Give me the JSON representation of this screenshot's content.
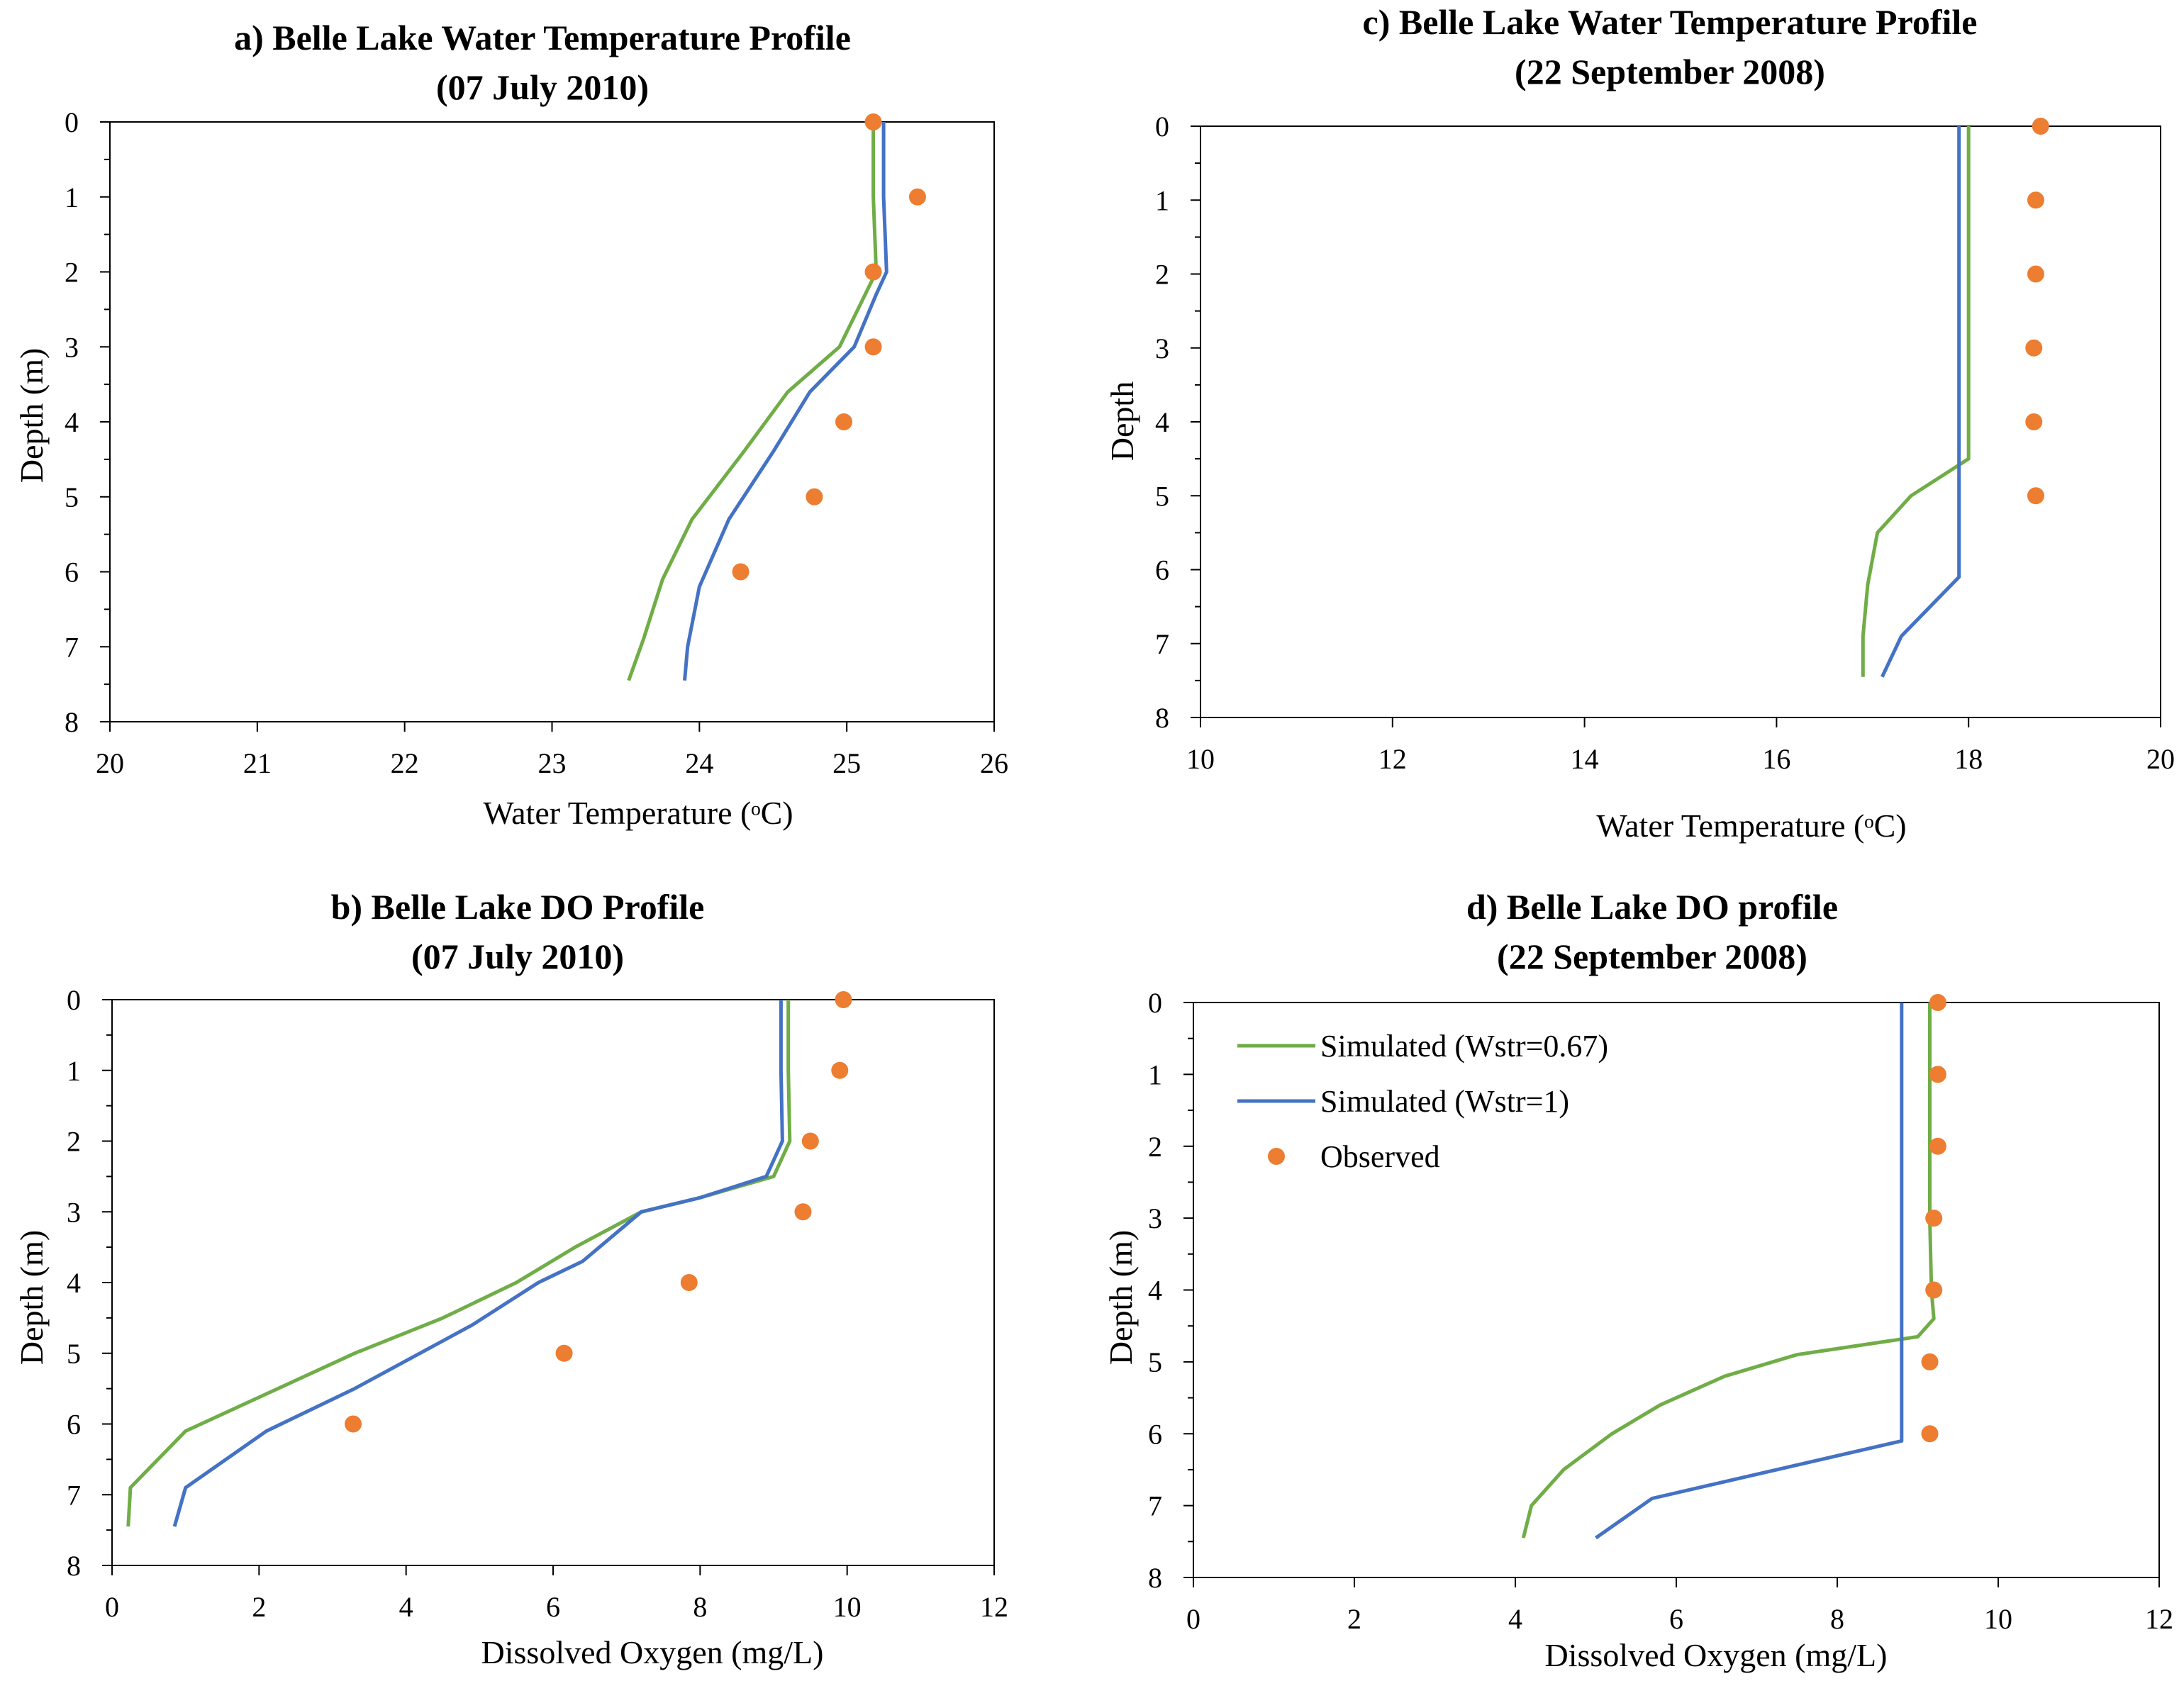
{
  "colors": {
    "green": "#70ad47",
    "blue": "#4472c4",
    "orange": "#ed7d31"
  },
  "legend": {
    "green_label": "Simulated (Wstr=0.67)",
    "blue_label": "Simulated (Wstr=1)",
    "observed_label": "Observed"
  },
  "chart_data": [
    {
      "id": "a",
      "type": "line",
      "title_line1": "a) Belle Lake Water Temperature Profile",
      "title_line2": "(07 July 2010)",
      "xlabel": "Water Temperature (ᵒC)",
      "ylabel": "Depth (m)",
      "xlim": [
        20,
        26
      ],
      "ylim": [
        0,
        8
      ],
      "y_inverted": true,
      "xticks": [
        20,
        21,
        22,
        23,
        24,
        25,
        26
      ],
      "yticks": [
        0,
        1,
        2,
        3,
        4,
        5,
        6,
        7,
        8
      ],
      "series": [
        {
          "name": "Simulated (Wstr=0.67)",
          "color_key": "green",
          "points": [
            [
              25.18,
              0
            ],
            [
              25.18,
              1
            ],
            [
              25.2,
              2
            ],
            [
              25.1,
              2.4
            ],
            [
              24.95,
              3
            ],
            [
              24.6,
              3.6
            ],
            [
              24.3,
              4.4
            ],
            [
              23.95,
              5.3
            ],
            [
              23.75,
              6.1
            ],
            [
              23.62,
              6.9
            ],
            [
              23.52,
              7.45
            ]
          ]
        },
        {
          "name": "Simulated (Wstr=1)",
          "color_key": "blue",
          "points": [
            [
              25.25,
              0
            ],
            [
              25.25,
              1
            ],
            [
              25.27,
              2
            ],
            [
              25.2,
              2.3
            ],
            [
              25.05,
              3
            ],
            [
              24.75,
              3.6
            ],
            [
              24.5,
              4.4
            ],
            [
              24.2,
              5.3
            ],
            [
              24.0,
              6.2
            ],
            [
              23.92,
              7.0
            ],
            [
              23.9,
              7.45
            ]
          ]
        }
      ],
      "observed": [
        [
          25.18,
          0
        ],
        [
          25.48,
          1
        ],
        [
          25.18,
          2
        ],
        [
          25.18,
          3
        ],
        [
          24.98,
          4
        ],
        [
          24.78,
          5
        ],
        [
          24.28,
          6
        ]
      ]
    },
    {
      "id": "c",
      "type": "line",
      "title_line1": "c) Belle Lake Water Temperature Profile",
      "title_line2": "(22 September 2008)",
      "xlabel": "Water Temperature (ᵒC)",
      "ylabel": "Depth",
      "xlim": [
        10,
        20
      ],
      "ylim": [
        0,
        8
      ],
      "y_inverted": true,
      "xticks": [
        10,
        12,
        14,
        16,
        18,
        20
      ],
      "yticks": [
        0,
        1,
        2,
        3,
        4,
        5,
        6,
        7,
        8
      ],
      "series": [
        {
          "name": "Simulated (Wstr=0.67)",
          "color_key": "green",
          "points": [
            [
              18.0,
              0
            ],
            [
              18.0,
              4.5
            ],
            [
              17.4,
              5.0
            ],
            [
              17.05,
              5.5
            ],
            [
              16.95,
              6.2
            ],
            [
              16.9,
              6.9
            ],
            [
              16.9,
              7.45
            ]
          ]
        },
        {
          "name": "Simulated (Wstr=1)",
          "color_key": "blue",
          "points": [
            [
              17.9,
              0
            ],
            [
              17.9,
              6.1
            ],
            [
              17.3,
              6.9
            ],
            [
              17.1,
              7.45
            ]
          ]
        }
      ],
      "observed": [
        [
          18.75,
          0
        ],
        [
          18.7,
          1
        ],
        [
          18.7,
          2
        ],
        [
          18.68,
          3
        ],
        [
          18.68,
          4
        ],
        [
          18.7,
          5
        ]
      ]
    },
    {
      "id": "b",
      "type": "line",
      "title_line1": "b) Belle Lake DO Profile",
      "title_line2": "(07 July 2010)",
      "xlabel": "Dissolved Oxygen (mg/L)",
      "ylabel": "Depth (m)",
      "xlim": [
        0,
        12
      ],
      "ylim": [
        0,
        8
      ],
      "y_inverted": true,
      "xticks": [
        0,
        2,
        4,
        6,
        8,
        10,
        12
      ],
      "yticks": [
        0,
        1,
        2,
        3,
        4,
        5,
        6,
        7,
        8
      ],
      "series": [
        {
          "name": "Simulated (Wstr=0.67)",
          "color_key": "green",
          "points": [
            [
              9.2,
              0
            ],
            [
              9.2,
              1
            ],
            [
              9.22,
              2
            ],
            [
              9.0,
              2.5
            ],
            [
              8.0,
              2.8
            ],
            [
              7.2,
              3.0
            ],
            [
              6.3,
              3.5
            ],
            [
              5.5,
              4.0
            ],
            [
              4.5,
              4.5
            ],
            [
              3.3,
              5.0
            ],
            [
              1.0,
              6.1
            ],
            [
              0.25,
              6.9
            ],
            [
              0.22,
              7.45
            ]
          ]
        },
        {
          "name": "Simulated (Wstr=1)",
          "color_key": "blue",
          "points": [
            [
              9.1,
              0
            ],
            [
              9.1,
              1
            ],
            [
              9.12,
              2
            ],
            [
              8.9,
              2.5
            ],
            [
              8.0,
              2.8
            ],
            [
              7.2,
              3.0
            ],
            [
              6.4,
              3.7
            ],
            [
              5.8,
              4.0
            ],
            [
              4.9,
              4.6
            ],
            [
              3.3,
              5.5
            ],
            [
              2.1,
              6.1
            ],
            [
              1.0,
              6.9
            ],
            [
              0.85,
              7.45
            ]
          ]
        }
      ],
      "observed": [
        [
          9.95,
          0
        ],
        [
          9.9,
          1
        ],
        [
          9.5,
          2
        ],
        [
          9.4,
          3
        ],
        [
          7.85,
          4
        ],
        [
          6.15,
          5
        ],
        [
          3.28,
          6
        ]
      ]
    },
    {
      "id": "d",
      "type": "line",
      "title_line1": "d) Belle Lake DO profile",
      "title_line2": "(22 September 2008)",
      "xlabel": "Dissolved Oxygen (mg/L)",
      "ylabel": "Depth (m)",
      "xlim": [
        0,
        12
      ],
      "ylim": [
        0,
        8
      ],
      "y_inverted": true,
      "xticks": [
        0,
        2,
        4,
        6,
        8,
        10,
        12
      ],
      "yticks": [
        0,
        1,
        2,
        3,
        4,
        5,
        6,
        7,
        8
      ],
      "legend_position": "top-left",
      "series": [
        {
          "name": "Simulated (Wstr=0.67)",
          "color_key": "green",
          "points": [
            [
              9.15,
              0
            ],
            [
              9.15,
              1
            ],
            [
              9.15,
              2
            ],
            [
              9.15,
              3
            ],
            [
              9.17,
              4
            ],
            [
              9.2,
              4.4
            ],
            [
              9.0,
              4.65
            ],
            [
              7.5,
              4.9
            ],
            [
              6.6,
              5.2
            ],
            [
              5.8,
              5.6
            ],
            [
              5.2,
              6.0
            ],
            [
              4.6,
              6.5
            ],
            [
              4.2,
              7.0
            ],
            [
              4.1,
              7.45
            ]
          ]
        },
        {
          "name": "Simulated (Wstr=1)",
          "color_key": "blue",
          "points": [
            [
              8.8,
              0
            ],
            [
              8.8,
              1
            ],
            [
              8.8,
              2
            ],
            [
              8.8,
              3
            ],
            [
              8.8,
              4
            ],
            [
              8.8,
              5
            ],
            [
              8.8,
              6.1
            ],
            [
              5.7,
              6.9
            ],
            [
              5.0,
              7.45
            ]
          ]
        }
      ],
      "observed": [
        [
          9.25,
          0
        ],
        [
          9.25,
          1
        ],
        [
          9.25,
          2
        ],
        [
          9.2,
          3
        ],
        [
          9.2,
          4
        ],
        [
          9.15,
          5
        ],
        [
          9.15,
          6
        ]
      ]
    }
  ]
}
